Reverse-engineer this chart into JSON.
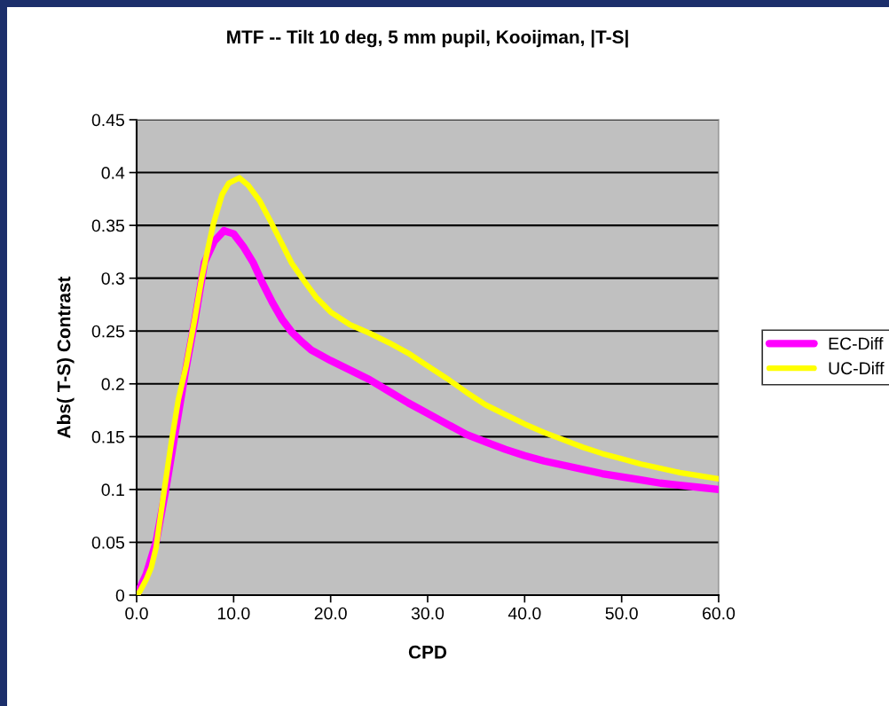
{
  "chart_data": {
    "type": "line",
    "title": "MTF -- Tilt 10 deg, 5 mm pupil, Kooijman, |T-S|",
    "xlabel": "CPD",
    "ylabel": "Abs( T-S) Contrast",
    "xlim": [
      0,
      60
    ],
    "xticks": [
      {
        "value": 0,
        "label": "0.0"
      },
      {
        "value": 10,
        "label": "10.0"
      },
      {
        "value": 20,
        "label": "20.0"
      },
      {
        "value": 30,
        "label": "30.0"
      },
      {
        "value": 40,
        "label": "40.0"
      },
      {
        "value": 50,
        "label": "50.0"
      },
      {
        "value": 60,
        "label": "60.0"
      }
    ],
    "ylim": [
      0,
      0.45
    ],
    "yticks": [
      0,
      0.05,
      0.1,
      0.15,
      0.2,
      0.25,
      0.3,
      0.35,
      0.4,
      0.45
    ],
    "grid": "y",
    "legend": "right",
    "marker": "none",
    "line_style": "solid",
    "series": [
      {
        "name": "EC-Diff",
        "color": "#ff00ff",
        "x": [
          0,
          1,
          2,
          3,
          4,
          5,
          6,
          7,
          8,
          9,
          10,
          11,
          12,
          13,
          14,
          15,
          16,
          17,
          18,
          20,
          22,
          24,
          26,
          28,
          30,
          32,
          34,
          36,
          38,
          40,
          42,
          44,
          46,
          48,
          50,
          52,
          54,
          56,
          58,
          60
        ],
        "values": [
          0,
          0.02,
          0.05,
          0.1,
          0.155,
          0.21,
          0.26,
          0.315,
          0.335,
          0.345,
          0.342,
          0.33,
          0.315,
          0.295,
          0.277,
          0.261,
          0.249,
          0.24,
          0.232,
          0.222,
          0.213,
          0.204,
          0.193,
          0.182,
          0.172,
          0.162,
          0.152,
          0.145,
          0.138,
          0.132,
          0.127,
          0.123,
          0.119,
          0.115,
          0.112,
          0.109,
          0.106,
          0.104,
          0.102,
          0.1
        ]
      },
      {
        "name": "UC-Diff",
        "color": "#ffff00",
        "x": [
          0,
          0.3,
          1,
          1.5,
          2,
          2.7,
          3.6,
          4.3,
          5.1,
          6,
          6.7,
          7.4,
          7.9,
          8.8,
          9.5,
          10.6,
          11.5,
          12.7,
          13.8,
          14.9,
          16,
          17.3,
          18.5,
          20,
          22,
          24,
          26,
          28,
          30,
          32,
          34,
          36,
          38,
          40,
          42,
          44,
          46,
          48,
          50,
          52,
          54,
          56,
          58,
          60
        ],
        "values": [
          0,
          0.003,
          0.015,
          0.026,
          0.045,
          0.09,
          0.146,
          0.185,
          0.217,
          0.262,
          0.3,
          0.33,
          0.351,
          0.379,
          0.39,
          0.395,
          0.388,
          0.373,
          0.354,
          0.334,
          0.314,
          0.297,
          0.282,
          0.268,
          0.256,
          0.248,
          0.239,
          0.229,
          0.217,
          0.205,
          0.192,
          0.18,
          0.171,
          0.162,
          0.154,
          0.147,
          0.14,
          0.134,
          0.129,
          0.124,
          0.12,
          0.116,
          0.113,
          0.11
        ]
      }
    ]
  }
}
